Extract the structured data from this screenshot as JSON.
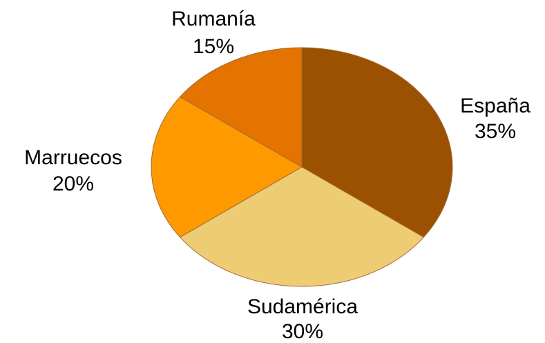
{
  "chart_data": {
    "type": "pie",
    "title": "",
    "slices": [
      {
        "label": "España",
        "value": 35,
        "value_label": "35%",
        "color": "#9C5100"
      },
      {
        "label": "Sudamérica",
        "value": 30,
        "value_label": "30%",
        "color": "#EECC73"
      },
      {
        "label": "Marruecos",
        "value": 20,
        "value_label": "20%",
        "color": "#FF9900"
      },
      {
        "label": "Rumanía",
        "value": 15,
        "value_label": "15%",
        "color": "#E47300"
      }
    ],
    "start_direction": "top",
    "direction": "clockwise",
    "legend": "none",
    "edge_color": "#A06A3A"
  }
}
